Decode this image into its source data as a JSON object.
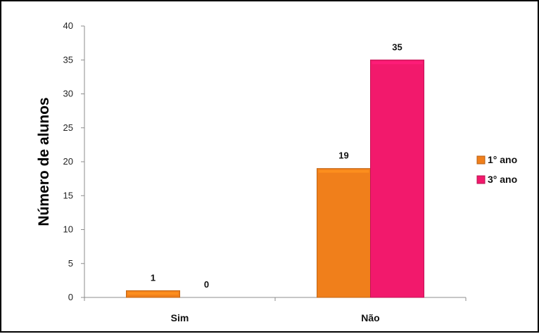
{
  "chart_data": {
    "type": "bar",
    "title": "",
    "xlabel": "",
    "ylabel": "Número de alunos",
    "categories": [
      "Sim",
      "Não"
    ],
    "series": [
      {
        "name": "1° ano",
        "values": [
          1,
          19
        ],
        "color": "#f07f1b"
      },
      {
        "name": "3° ano",
        "values": [
          0,
          35
        ],
        "color": "#f2196c"
      }
    ],
    "ylim": [
      0,
      40
    ],
    "yticks": [
      0,
      5,
      10,
      15,
      20,
      25,
      30,
      35,
      40
    ],
    "grid": false,
    "legend_position": "right",
    "data_labels": true
  }
}
